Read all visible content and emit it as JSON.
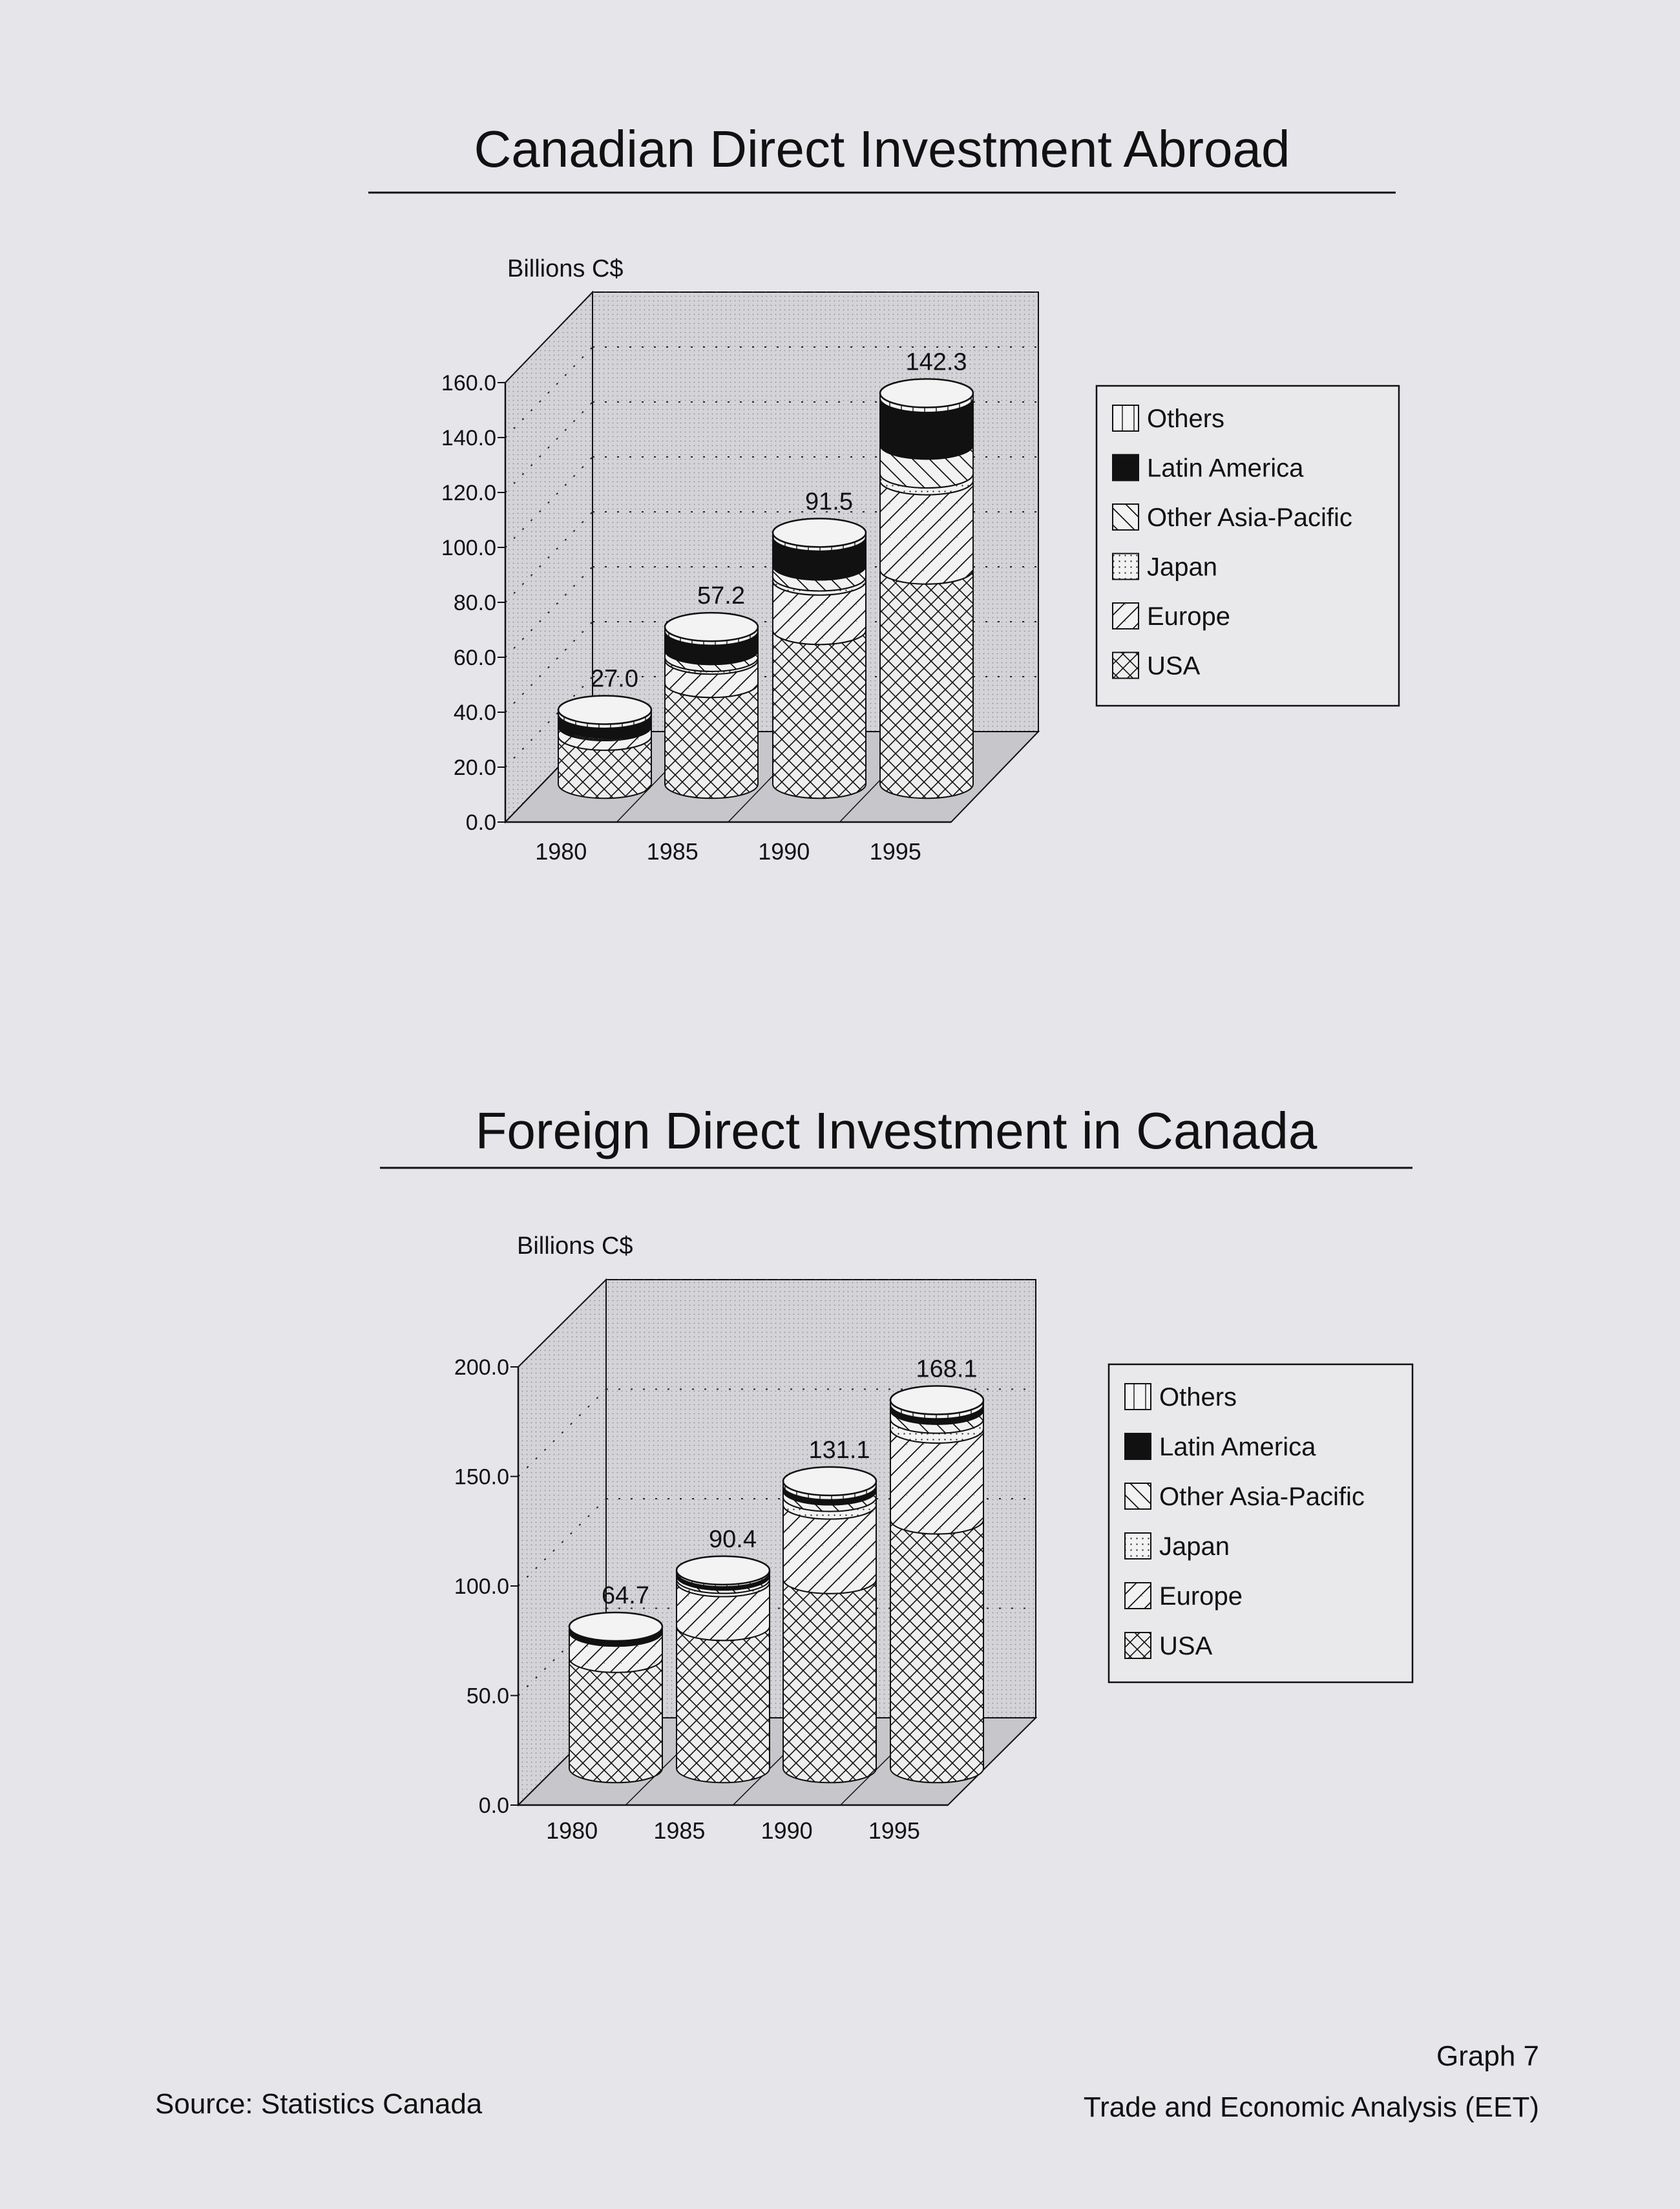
{
  "footer": {
    "source": "Source: Statistics Canada",
    "graph_no": "Graph 7",
    "agency": "Trade and Economic Analysis (EET)"
  },
  "colors": {
    "paper": "#e6e5ea",
    "floor": "#cbcbd0",
    "back_wall": "#d6d6db",
    "ink": "#111111"
  },
  "legend_items": [
    {
      "label": "Others",
      "pattern": "vertical-stripe"
    },
    {
      "label": "Latin America",
      "pattern": "solid-black"
    },
    {
      "label": "Other Asia-Pacific",
      "pattern": "backslash"
    },
    {
      "label": "Japan",
      "pattern": "dots"
    },
    {
      "label": "Europe",
      "pattern": "slash"
    },
    {
      "label": "USA",
      "pattern": "crosshatch"
    }
  ],
  "chart_data": [
    {
      "type": "bar",
      "style": "3d-stacked-cylinder",
      "title": "Canadian Direct Investment Abroad",
      "unit_label": "Billions C$",
      "categories": [
        "1980",
        "1985",
        "1990",
        "1995"
      ],
      "totals": [
        27.0,
        57.2,
        91.5,
        142.3
      ],
      "total_labels": [
        "27.0",
        "57.2",
        "91.5",
        "142.3"
      ],
      "ylim": [
        0,
        160
      ],
      "yticks": [
        "0.0",
        "20.0",
        "40.0",
        "60.0",
        "80.0",
        "100.0",
        "120.0",
        "140.0",
        "160.0"
      ],
      "grid": true,
      "legend_position": "right",
      "series": [
        {
          "name": "USA",
          "values": [
            17.5,
            36.7,
            56.0,
            78.0
          ]
        },
        {
          "name": "Europe",
          "values": [
            3.5,
            8.5,
            18.0,
            32.5
          ]
        },
        {
          "name": "Japan",
          "values": [
            0.5,
            1.0,
            1.5,
            2.5
          ]
        },
        {
          "name": "Other Asia-Pacific",
          "values": [
            0.5,
            2.5,
            4.0,
            10.5
          ]
        },
        {
          "name": "Latin America",
          "values": [
            3.5,
            7.0,
            10.5,
            17.0
          ]
        },
        {
          "name": "Others",
          "values": [
            1.5,
            1.5,
            1.5,
            1.8
          ]
        }
      ]
    },
    {
      "type": "bar",
      "style": "3d-stacked-cylinder",
      "title": "Foreign Direct Investment in Canada",
      "unit_label": "Billions C$",
      "categories": [
        "1980",
        "1985",
        "1990",
        "1995"
      ],
      "totals": [
        64.7,
        90.4,
        131.1,
        168.1
      ],
      "total_labels": [
        "64.7",
        "90.4",
        "131.1",
        "168.1"
      ],
      "ylim": [
        0,
        200
      ],
      "yticks": [
        "0.0",
        "50.0",
        "100.0",
        "150.0",
        "200.0"
      ],
      "grid": true,
      "legend_position": "right",
      "series": [
        {
          "name": "USA",
          "values": [
            50.3,
            64.9,
            86.3,
            113.5
          ]
        },
        {
          "name": "Europe",
          "values": [
            12.0,
            20.0,
            34.0,
            41.5
          ]
        },
        {
          "name": "Japan",
          "values": [
            0.5,
            1.5,
            3.5,
            4.5
          ]
        },
        {
          "name": "Other Asia-Pacific",
          "values": [
            0.5,
            1.5,
            3.0,
            4.1
          ]
        },
        {
          "name": "Latin America",
          "values": [
            0.9,
            1.5,
            2.3,
            2.5
          ]
        },
        {
          "name": "Others",
          "values": [
            0.5,
            1.0,
            2.0,
            2.0
          ]
        }
      ]
    }
  ]
}
